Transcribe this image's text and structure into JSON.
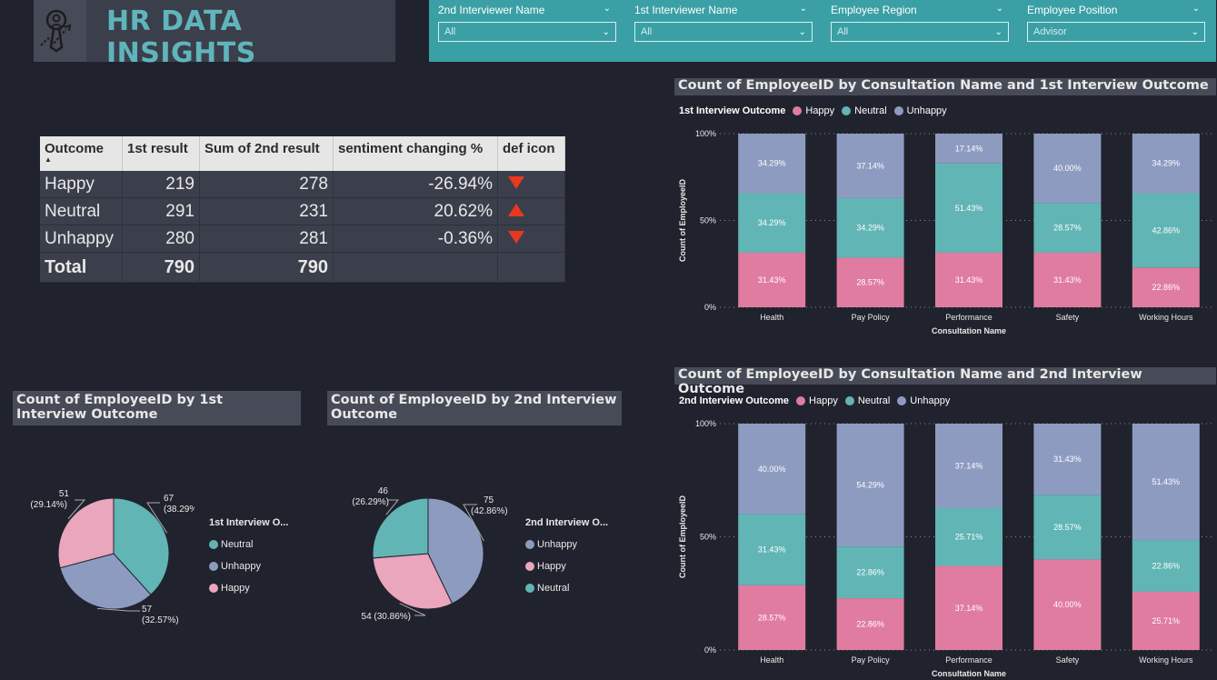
{
  "app": {
    "title": "HR DATA INSIGHTS"
  },
  "colors": {
    "happy": "#e07ca0",
    "neutral": "#62b5b5",
    "unhappy": "#8e9bc1",
    "accent": "#5fb5bb",
    "pie_happy": "#e9a6bd"
  },
  "slicers": [
    {
      "label": "2nd Interviewer Name",
      "value": "All"
    },
    {
      "label": "1st Interviewer Name",
      "value": "All"
    },
    {
      "label": "Employee Region",
      "value": "All"
    },
    {
      "label": "Employee Position",
      "value": "Advisor"
    }
  ],
  "table": {
    "headers": [
      "Outcome",
      "1st result",
      "Sum of 2nd result",
      "sentiment changing %",
      "def icon"
    ],
    "rows": [
      {
        "outcome": "Happy",
        "first": "219",
        "second": "278",
        "change": "-26.94%",
        "icon": "down-triangle-icon"
      },
      {
        "outcome": "Neutral",
        "first": "291",
        "second": "231",
        "change": "20.62%",
        "icon": "up-triangle-icon"
      },
      {
        "outcome": "Unhappy",
        "first": "280",
        "second": "281",
        "change": "-0.36%",
        "icon": "down-triangle-icon"
      }
    ],
    "total": {
      "label": "Total",
      "first": "790",
      "second": "790"
    }
  },
  "chart_data": [
    {
      "type": "pie",
      "title": "Count of EmployeeID by 1st Interview Outcome",
      "legend_title": "1st Interview O...",
      "slices": [
        {
          "name": "Neutral",
          "value": 67,
          "label": "67",
          "pct": "(38.29%)"
        },
        {
          "name": "Unhappy",
          "value": 57,
          "label": "57",
          "pct": "(32.57%)"
        },
        {
          "name": "Happy",
          "value": 51,
          "label": "51",
          "pct": "(29.14%)"
        }
      ]
    },
    {
      "type": "pie",
      "title": "Count of EmployeeID by 2nd Interview Outcome",
      "legend_title": "2nd Interview O...",
      "slices": [
        {
          "name": "Unhappy",
          "value": 75,
          "label": "75",
          "pct": "(42.86%)"
        },
        {
          "name": "Happy",
          "value": 54,
          "label": "54 (30.86%)",
          "pct": ""
        },
        {
          "name": "Neutral",
          "value": 46,
          "label": "46",
          "pct": "(26.29%)"
        }
      ]
    },
    {
      "type": "bar",
      "stacked": "100%",
      "title": "Count of EmployeeID by Consultation Name and 1st Interview Outcome",
      "legend_title": "1st Interview Outcome",
      "xlabel": "Consultation Name",
      "ylabel": "Count of EmployeeID",
      "yticks": [
        "0%",
        "50%",
        "100%"
      ],
      "categories": [
        "Health",
        "Pay Policy",
        "Performance",
        "Safety",
        "Working Hours"
      ],
      "series": [
        {
          "name": "Happy",
          "values": [
            31.43,
            28.57,
            31.43,
            31.43,
            22.86
          ]
        },
        {
          "name": "Neutral",
          "values": [
            34.29,
            34.29,
            51.43,
            28.57,
            42.86
          ]
        },
        {
          "name": "Unhappy",
          "values": [
            34.29,
            37.14,
            17.14,
            40.0,
            34.29
          ]
        }
      ]
    },
    {
      "type": "bar",
      "stacked": "100%",
      "title": "Count of EmployeeID by Consultation Name and 2nd Interview Outcome",
      "legend_title": "2nd Interview Outcome",
      "xlabel": "Consultation Name",
      "ylabel": "Count of EmployeeID",
      "yticks": [
        "0%",
        "50%",
        "100%"
      ],
      "categories": [
        "Health",
        "Pay Policy",
        "Performance",
        "Safety",
        "Working Hours"
      ],
      "series": [
        {
          "name": "Happy",
          "values": [
            28.57,
            22.86,
            37.14,
            40.0,
            25.71
          ]
        },
        {
          "name": "Neutral",
          "values": [
            31.43,
            22.86,
            25.71,
            28.57,
            22.86
          ]
        },
        {
          "name": "Unhappy",
          "values": [
            40.0,
            54.29,
            37.14,
            31.43,
            51.43
          ]
        }
      ]
    }
  ]
}
